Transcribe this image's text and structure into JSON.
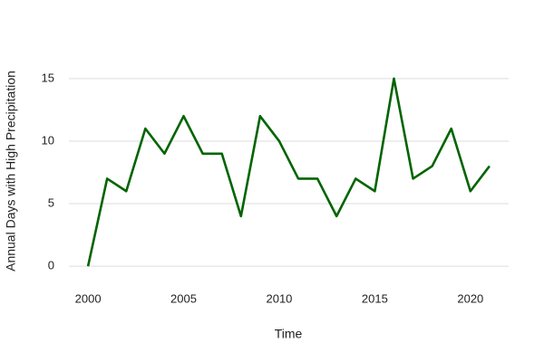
{
  "chart_data": {
    "type": "line",
    "x_label": "Time",
    "y_label": "Annual Days with High Precipitation",
    "x": [
      2000,
      2001,
      2002,
      2003,
      2004,
      2005,
      2006,
      2007,
      2008,
      2009,
      2010,
      2011,
      2012,
      2013,
      2014,
      2015,
      2016,
      2017,
      2018,
      2019,
      2020,
      2021
    ],
    "values": [
      0,
      7,
      6,
      11,
      9,
      12,
      9,
      9,
      4,
      12,
      10,
      7,
      7,
      4,
      7,
      6,
      15,
      7,
      8,
      11,
      6,
      8
    ],
    "color": "#006400",
    "xlim": [
      1999,
      2022
    ],
    "xticks": [
      2000,
      2005,
      2010,
      2015,
      2020
    ],
    "ylim": [
      -1,
      16
    ],
    "yticks": [
      0,
      5,
      10,
      15
    ],
    "grid": true
  }
}
